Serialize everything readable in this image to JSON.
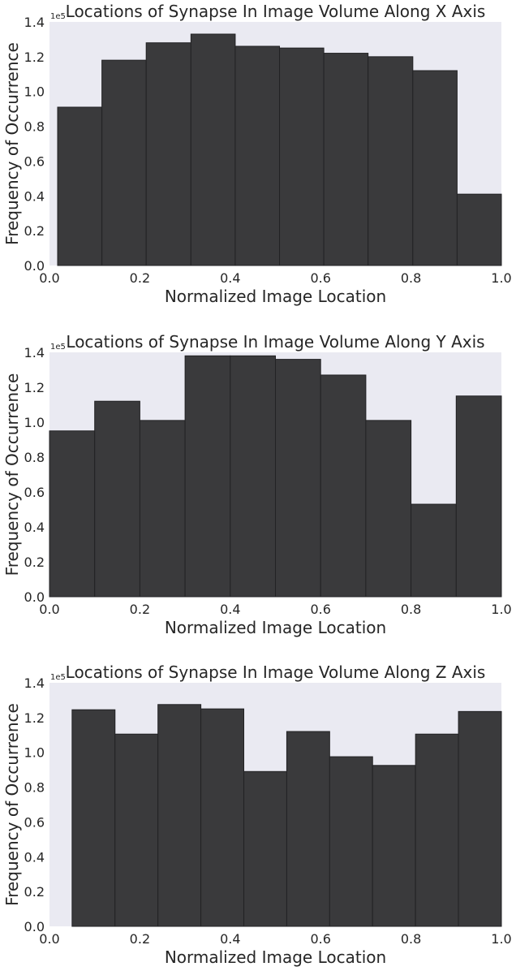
{
  "chart_data": [
    {
      "type": "bar",
      "title": "Locations of Synapse In Image Volume Along X Axis",
      "xlabel": "Normalized Image Location",
      "ylabel": "Frequency of Occurrence",
      "y_offset_label": "1e5",
      "xlim": [
        0.0,
        1.0
      ],
      "ylim": [
        0.0,
        1.4
      ],
      "x_ticks": [
        "0.0",
        "0.2",
        "0.4",
        "0.6",
        "0.8",
        "1.0"
      ],
      "y_ticks": [
        "0.0",
        "0.2",
        "0.4",
        "0.6",
        "0.8",
        "1.0",
        "1.2",
        "1.4"
      ],
      "grid": false,
      "bar_color": "#3a3a3c",
      "background": "#eaeaf2",
      "bins": [
        {
          "start": 0.018,
          "end": 0.116,
          "value": 0.91
        },
        {
          "start": 0.116,
          "end": 0.214,
          "value": 1.18
        },
        {
          "start": 0.214,
          "end": 0.313,
          "value": 1.28
        },
        {
          "start": 0.313,
          "end": 0.411,
          "value": 1.33
        },
        {
          "start": 0.411,
          "end": 0.509,
          "value": 1.26
        },
        {
          "start": 0.509,
          "end": 0.607,
          "value": 1.25
        },
        {
          "start": 0.607,
          "end": 0.705,
          "value": 1.22
        },
        {
          "start": 0.705,
          "end": 0.804,
          "value": 1.2
        },
        {
          "start": 0.804,
          "end": 0.902,
          "value": 1.12
        },
        {
          "start": 0.902,
          "end": 1.0,
          "value": 0.41
        }
      ]
    },
    {
      "type": "bar",
      "title": "Locations of Synapse In Image Volume Along Y Axis",
      "xlabel": "Normalized Image Location",
      "ylabel": "Frequency of Occurrence",
      "y_offset_label": "1e5",
      "xlim": [
        0.0,
        1.0
      ],
      "ylim": [
        0.0,
        1.4
      ],
      "x_ticks": [
        "0.0",
        "0.2",
        "0.4",
        "0.6",
        "0.8",
        "1.0"
      ],
      "y_ticks": [
        "0.0",
        "0.2",
        "0.4",
        "0.6",
        "0.8",
        "1.0",
        "1.2",
        "1.4"
      ],
      "grid": false,
      "bar_color": "#3a3a3c",
      "background": "#eaeaf2",
      "bins": [
        {
          "start": 0.0,
          "end": 0.1,
          "value": 0.95
        },
        {
          "start": 0.1,
          "end": 0.2,
          "value": 1.12
        },
        {
          "start": 0.2,
          "end": 0.3,
          "value": 1.01
        },
        {
          "start": 0.3,
          "end": 0.4,
          "value": 1.38
        },
        {
          "start": 0.4,
          "end": 0.5,
          "value": 1.38
        },
        {
          "start": 0.5,
          "end": 0.6,
          "value": 1.36
        },
        {
          "start": 0.6,
          "end": 0.7,
          "value": 1.27
        },
        {
          "start": 0.7,
          "end": 0.8,
          "value": 1.01
        },
        {
          "start": 0.8,
          "end": 0.9,
          "value": 0.53
        },
        {
          "start": 0.9,
          "end": 1.0,
          "value": 1.15
        }
      ]
    },
    {
      "type": "bar",
      "title": "Locations of Synapse In Image Volume Along Z Axis",
      "xlabel": "Normalized Image Location",
      "ylabel": "Frequency of Occurrence",
      "y_offset_label": "1e5",
      "xlim": [
        0.0,
        1.0
      ],
      "ylim": [
        0.0,
        1.4
      ],
      "x_ticks": [
        "0.0",
        "0.2",
        "0.4",
        "0.6",
        "0.8",
        "1.0"
      ],
      "y_ticks": [
        "0.0",
        "0.2",
        "0.4",
        "0.6",
        "0.8",
        "1.0",
        "1.2",
        "1.4"
      ],
      "grid": false,
      "bar_color": "#3a3a3c",
      "background": "#eaeaf2",
      "bins": [
        {
          "start": 0.05,
          "end": 0.145,
          "value": 1.245
        },
        {
          "start": 0.145,
          "end": 0.24,
          "value": 1.105
        },
        {
          "start": 0.24,
          "end": 0.335,
          "value": 1.275
        },
        {
          "start": 0.335,
          "end": 0.43,
          "value": 1.25
        },
        {
          "start": 0.43,
          "end": 0.525,
          "value": 0.89
        },
        {
          "start": 0.525,
          "end": 0.62,
          "value": 1.12
        },
        {
          "start": 0.62,
          "end": 0.715,
          "value": 0.975
        },
        {
          "start": 0.715,
          "end": 0.81,
          "value": 0.925
        },
        {
          "start": 0.81,
          "end": 0.905,
          "value": 1.105
        },
        {
          "start": 0.905,
          "end": 1.0,
          "value": 1.235
        }
      ]
    }
  ]
}
